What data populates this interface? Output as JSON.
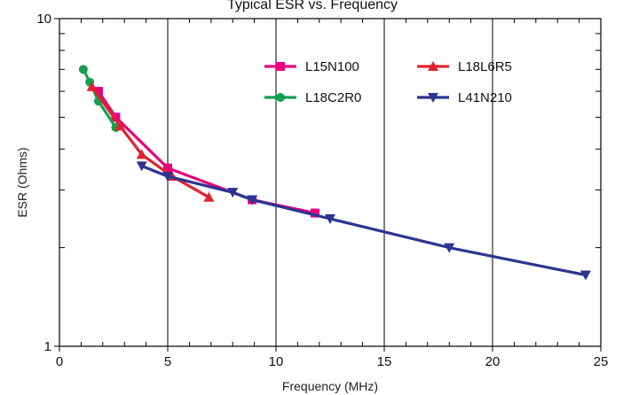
{
  "chart_data": {
    "type": "line",
    "title": "Typical ESR vs. Frequency",
    "xlabel": "Frequency (MHz)",
    "ylabel": "ESR (Ohms)",
    "xlim": [
      0,
      25
    ],
    "ylim": [
      1,
      10
    ],
    "yscale": "log",
    "x_ticks": [
      "0",
      "5",
      "10",
      "15",
      "20",
      "25"
    ],
    "y_ticks": [
      "1",
      "10"
    ],
    "grid": true,
    "legend_position": "top-right",
    "series": [
      {
        "name": "L15N100",
        "color": "#e6007e",
        "marker": "square",
        "x": [
          1.8,
          2.6,
          5.0,
          8.9,
          11.8
        ],
        "y": [
          6.0,
          5.0,
          3.5,
          2.8,
          2.55
        ]
      },
      {
        "name": "L18C2R0",
        "color": "#14a050",
        "marker": "circle",
        "x": [
          1.1,
          1.4,
          1.8,
          2.6
        ],
        "y": [
          7.0,
          6.4,
          5.6,
          4.65
        ]
      },
      {
        "name": "L18L6R5",
        "color": "#e0242e",
        "marker": "triangle-up",
        "x": [
          1.5,
          2.8,
          3.8,
          5.2,
          6.9
        ],
        "y": [
          6.2,
          4.7,
          3.85,
          3.3,
          2.85
        ]
      },
      {
        "name": "L41N210",
        "color": "#2b3590",
        "marker": "triangle-down",
        "x": [
          3.8,
          5.0,
          8.0,
          8.9,
          12.5,
          18.0,
          24.3
        ],
        "y": [
          3.55,
          3.3,
          2.95,
          2.8,
          2.45,
          2.0,
          1.65
        ]
      }
    ]
  }
}
